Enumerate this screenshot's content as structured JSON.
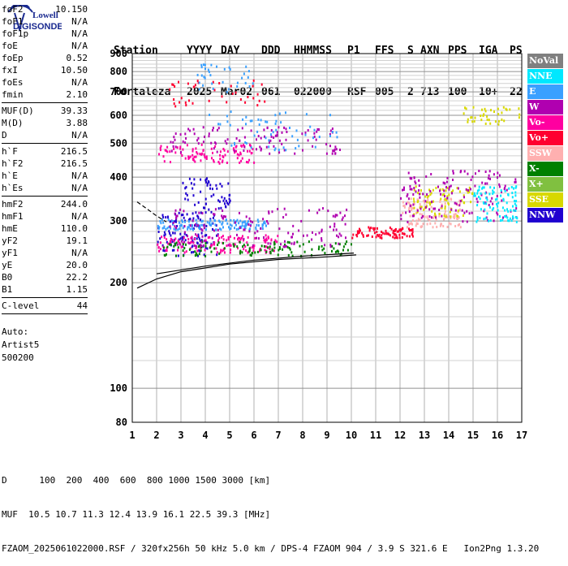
{
  "logo": {
    "brand_top": "Lowell",
    "brand_bottom": "DIGISONDE"
  },
  "header": {
    "labels": [
      "Station",
      "YYYY",
      "DAY",
      "DDD",
      "HHMMSS",
      "P1",
      "FFS",
      "S",
      "AXN",
      "PPS",
      "IGA",
      "PS"
    ],
    "values": [
      "Fortaleza",
      "2025",
      "Mar02",
      "061",
      "022000",
      "RSF",
      "005",
      "2",
      "713",
      "100",
      "10+",
      "22"
    ]
  },
  "params": {
    "group1": [
      {
        "label": "foF2",
        "value": "10.150"
      },
      {
        "label": "foF1",
        "value": "N/A"
      },
      {
        "label": "foF1p",
        "value": "N/A"
      },
      {
        "label": "foE",
        "value": "N/A"
      },
      {
        "label": "foEp",
        "value": "0.52"
      },
      {
        "label": "fxI",
        "value": "10.50"
      },
      {
        "label": "foEs",
        "value": "N/A"
      },
      {
        "label": "fmin",
        "value": "2.10"
      }
    ],
    "group2": [
      {
        "label": "MUF(D)",
        "value": "39.33"
      },
      {
        "label": "M(D)",
        "value": "3.88"
      },
      {
        "label": "D",
        "value": "N/A"
      }
    ],
    "group3": [
      {
        "label": "h`F",
        "value": "216.5"
      },
      {
        "label": "h`F2",
        "value": "216.5"
      },
      {
        "label": "h`E",
        "value": "N/A"
      },
      {
        "label": "h`Es",
        "value": "N/A"
      }
    ],
    "group4": [
      {
        "label": "hmF2",
        "value": "244.0"
      },
      {
        "label": "hmF1",
        "value": "N/A"
      },
      {
        "label": "hmE",
        "value": "110.0"
      },
      {
        "label": "yF2",
        "value": "19.1"
      },
      {
        "label": "yF1",
        "value": "N/A"
      },
      {
        "label": "yE",
        "value": "20.0"
      },
      {
        "label": "B0",
        "value": "22.2"
      },
      {
        "label": "B1",
        "value": "1.15"
      }
    ],
    "group5": [
      {
        "label": "C-level",
        "value": "44"
      }
    ],
    "auto": [
      "Auto:",
      "Artist5",
      "500200"
    ]
  },
  "legend": [
    {
      "label": "NoVal",
      "color": "#808080"
    },
    {
      "label": "NNE",
      "color": "#00e8ff"
    },
    {
      "label": "E",
      "color": "#3aa0ff"
    },
    {
      "label": "W",
      "color": "#b000b0"
    },
    {
      "label": "Vo-",
      "color": "#ff00a0"
    },
    {
      "label": "Vo+",
      "color": "#ff0030"
    },
    {
      "label": "SSW",
      "color": "#ffb0b0"
    },
    {
      "label": "X-",
      "color": "#008000"
    },
    {
      "label": "X+",
      "color": "#80c040"
    },
    {
      "label": "SSE",
      "color": "#d8d800"
    },
    {
      "label": "NNW",
      "color": "#2000d0"
    }
  ],
  "chart_data": {
    "type": "scatter",
    "title": "",
    "xlabel": "",
    "ylabel": "",
    "xlim": [
      1,
      17
    ],
    "ylim": [
      80,
      900
    ],
    "y_scale": "log",
    "x_ticks": [
      1,
      2,
      3,
      4,
      5,
      6,
      7,
      8,
      9,
      10,
      11,
      12,
      13,
      14,
      15,
      16,
      17
    ],
    "y_ticks": [
      80,
      100,
      200,
      300,
      400,
      500,
      600,
      700,
      800,
      900
    ],
    "grid": true,
    "clusters": [
      {
        "color": "#2000d0",
        "x": [
          2.0,
          4.5
        ],
        "y": [
          240,
          320
        ],
        "n": 120
      },
      {
        "color": "#3aa0ff",
        "x": [
          2.0,
          6.5
        ],
        "y": [
          285,
          305
        ],
        "n": 130
      },
      {
        "color": "#ff00a0",
        "x": [
          2.0,
          7.0
        ],
        "y": [
          245,
          275
        ],
        "n": 140
      },
      {
        "color": "#008000",
        "x": [
          2.2,
          10.0
        ],
        "y": [
          240,
          265
        ],
        "n": 120
      },
      {
        "color": "#b000b0",
        "x": [
          2.5,
          10.0
        ],
        "y": [
          255,
          330
        ],
        "n": 140
      },
      {
        "color": "#ff0030",
        "x": [
          10.0,
          12.5
        ],
        "y": [
          270,
          290
        ],
        "n": 90
      },
      {
        "color": "#ffb0b0",
        "x": [
          12.0,
          14.5
        ],
        "y": [
          290,
          350
        ],
        "n": 120
      },
      {
        "color": "#d8d800",
        "x": [
          12.5,
          15.0
        ],
        "y": [
          310,
          380
        ],
        "n": 80
      },
      {
        "color": "#b000b0",
        "x": [
          12.0,
          16.8
        ],
        "y": [
          300,
          420
        ],
        "n": 150
      },
      {
        "color": "#00e8ff",
        "x": [
          15.0,
          16.8
        ],
        "y": [
          300,
          380
        ],
        "n": 90
      },
      {
        "color": "#2000d0",
        "x": [
          3.0,
          5.0
        ],
        "y": [
          320,
          400
        ],
        "n": 60
      },
      {
        "color": "#ff00a0",
        "x": [
          2.0,
          6.0
        ],
        "y": [
          440,
          500
        ],
        "n": 100
      },
      {
        "color": "#b000b0",
        "x": [
          2.5,
          9.5
        ],
        "y": [
          470,
          560
        ],
        "n": 110
      },
      {
        "color": "#3aa0ff",
        "x": [
          4.0,
          9.5
        ],
        "y": [
          480,
          620
        ],
        "n": 60
      },
      {
        "color": "#ff0030",
        "x": [
          2.5,
          6.5
        ],
        "y": [
          640,
          760
        ],
        "n": 40
      },
      {
        "color": "#3aa0ff",
        "x": [
          3.5,
          6.0
        ],
        "y": [
          700,
          850
        ],
        "n": 35
      },
      {
        "color": "#d8d800",
        "x": [
          14.5,
          17.0
        ],
        "y": [
          570,
          640
        ],
        "n": 40
      }
    ],
    "curves": [
      {
        "style": "solid",
        "points": [
          [
            1.2,
            193
          ],
          [
            2.0,
            205
          ],
          [
            3.0,
            215
          ],
          [
            5.0,
            226
          ],
          [
            7.0,
            233
          ],
          [
            9.0,
            237
          ],
          [
            10.2,
            240
          ]
        ]
      },
      {
        "style": "solid",
        "points": [
          [
            2.0,
            212
          ],
          [
            4.0,
            223
          ],
          [
            6.0,
            232
          ],
          [
            8.0,
            238
          ],
          [
            10.1,
            243
          ]
        ]
      },
      {
        "style": "dashed",
        "points": [
          [
            1.2,
            340
          ],
          [
            1.6,
            325
          ],
          [
            2.0,
            310
          ],
          [
            2.4,
            298
          ]
        ]
      }
    ]
  },
  "footer": {
    "d_label": "D",
    "d_values": [
      "100",
      "200",
      "400",
      "600",
      "800",
      "1000",
      "1500",
      "3000"
    ],
    "d_unit": "[km]",
    "muf_label": "MUF",
    "muf_values": [
      "10.5",
      "10.7",
      "11.3",
      "12.4",
      "13.9",
      "16.1",
      "22.5",
      "39.3"
    ],
    "muf_unit": "[MHz]",
    "info": "FZAOM_2025061022000.RSF / 320fx256h 50 kHz 5.0 km / DPS-4 FZAOM 904 / 3.9 S 321.6 E   Ion2Png 1.3.20"
  }
}
